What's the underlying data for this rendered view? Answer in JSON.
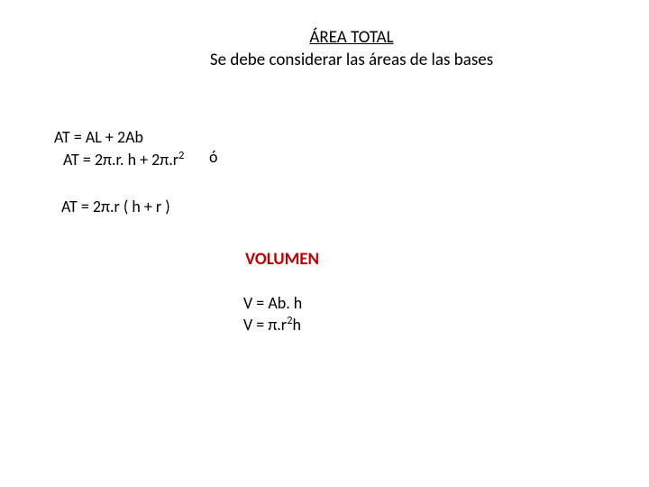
{
  "colors": {
    "text": "#000000",
    "accent_red": "#c00000",
    "background": "#ffffff"
  },
  "title": {
    "line1": "ÁREA TOTAL",
    "line2": "Se debe considerar las áreas de las bases"
  },
  "area_total": {
    "formula1": "AT = AL + 2Ab",
    "formula2_pre": "AT = 2π.r. h + 2π.r",
    "formula2_sup": "2",
    "or_word": "ó",
    "formula3": "AT = 2π.r ( h + r )"
  },
  "volumen": {
    "heading": "VOLUMEN",
    "formula1": "V = Ab. h",
    "formula2_pre": "V = π.r",
    "formula2_sup": "2",
    "formula2_post": "h"
  }
}
